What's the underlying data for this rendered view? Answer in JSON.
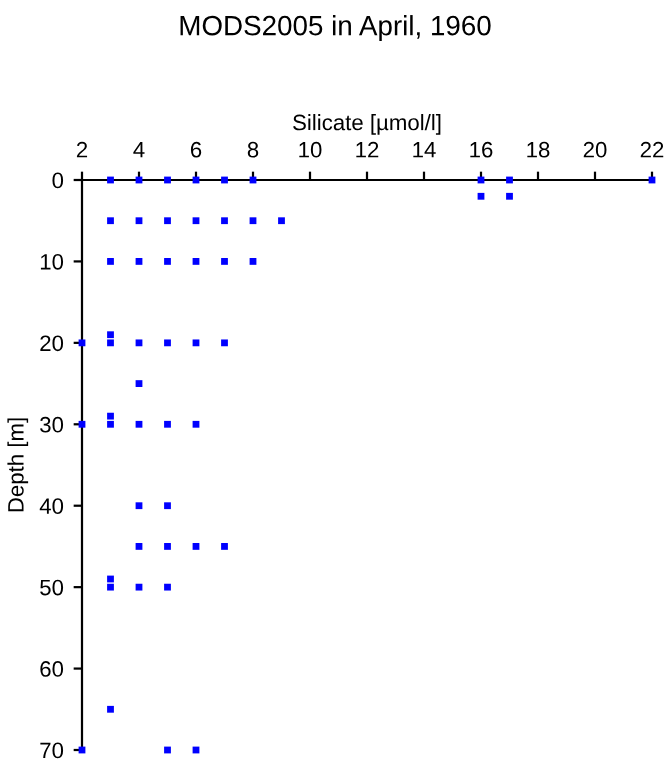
{
  "chart_data": {
    "type": "scatter",
    "title": "MODS2005 in April, 1960",
    "xlabel": "Silicate [µmol/l]",
    "ylabel": "Depth [m]",
    "xlim": [
      2,
      22
    ],
    "xticks": [
      2,
      4,
      6,
      8,
      10,
      12,
      14,
      16,
      18,
      20,
      22
    ],
    "ylim": [
      70,
      0
    ],
    "yticks": [
      0,
      10,
      20,
      30,
      40,
      50,
      60,
      70
    ],
    "grid": false,
    "marker": "square",
    "series": [
      {
        "color": "#0000ff",
        "x": [
          3,
          4,
          5,
          6,
          7,
          8,
          16,
          17,
          22,
          16,
          17,
          3,
          4,
          5,
          6,
          7,
          8,
          9,
          3,
          4,
          5,
          6,
          7,
          8,
          3,
          2,
          3,
          4,
          5,
          6,
          7,
          4,
          3,
          2,
          3,
          4,
          5,
          6,
          4,
          5,
          4,
          5,
          6,
          7,
          3,
          3,
          4,
          5,
          3,
          2,
          5,
          6
        ],
        "values": [
          0,
          0,
          0,
          0,
          0,
          0,
          0,
          0,
          0,
          2,
          2,
          5,
          5,
          5,
          5,
          5,
          5,
          5,
          10,
          10,
          10,
          10,
          10,
          10,
          19,
          20,
          20,
          20,
          20,
          20,
          20,
          25,
          29,
          30,
          30,
          30,
          30,
          30,
          40,
          40,
          45,
          45,
          45,
          45,
          49,
          50,
          50,
          50,
          65,
          70,
          70,
          70
        ]
      }
    ]
  }
}
